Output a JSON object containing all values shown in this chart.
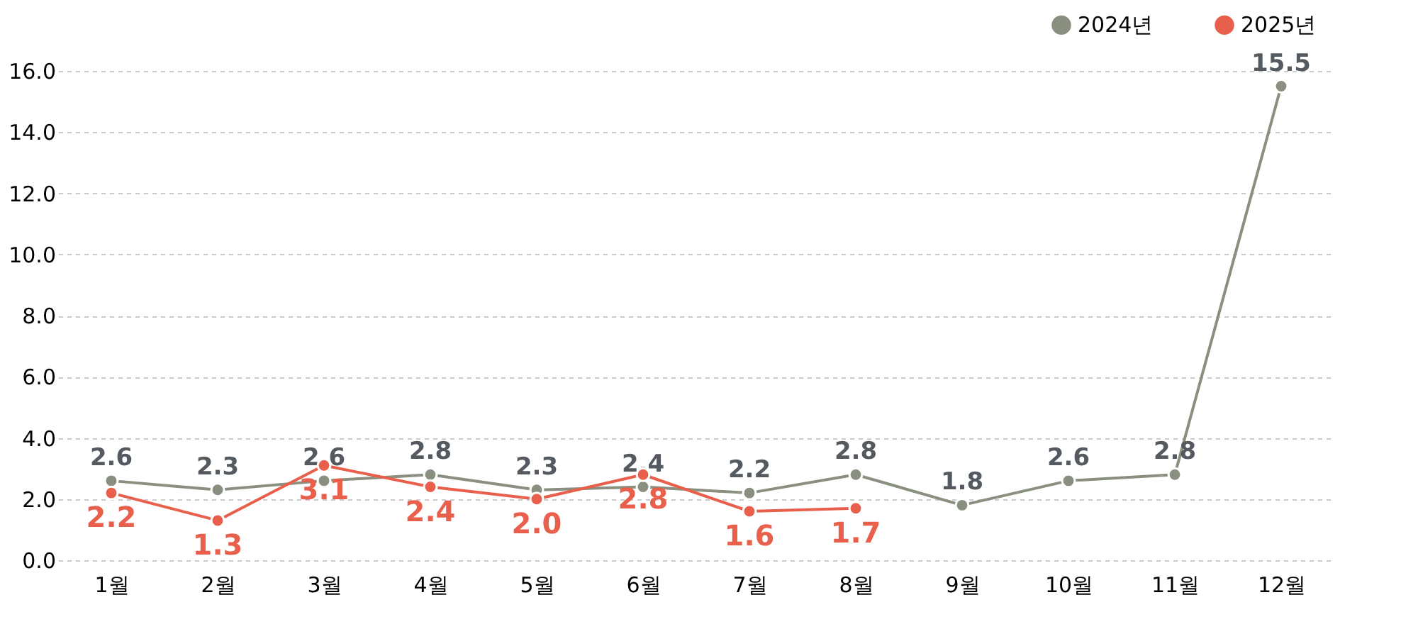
{
  "chart_data": {
    "type": "line",
    "categories": [
      "1월",
      "2월",
      "3월",
      "4월",
      "5월",
      "6월",
      "7월",
      "8월",
      "9월",
      "10월",
      "11월",
      "12월"
    ],
    "series": [
      {
        "name": "2024년",
        "color": "#8a9080",
        "values": [
          2.6,
          2.3,
          2.6,
          2.8,
          2.3,
          2.4,
          2.2,
          2.8,
          1.8,
          2.6,
          2.8,
          15.5
        ],
        "value_labels": [
          "2.6",
          "2.3",
          "2.6",
          "2.8",
          "2.3",
          "2.4",
          "2.2",
          "2.8",
          "1.8",
          "2.6",
          "2.8",
          "15.5"
        ]
      },
      {
        "name": "2025년",
        "color": "#e8604c",
        "values": [
          2.2,
          1.3,
          3.1,
          2.4,
          2.0,
          2.8,
          1.6,
          1.7,
          null,
          null,
          null,
          null
        ],
        "value_labels": [
          "2.2",
          "1.3",
          "3.1",
          "2.4",
          "2.0",
          "2.8",
          "1.6",
          "1.7",
          null,
          null,
          null,
          null
        ]
      }
    ],
    "ylim": [
      0,
      16
    ],
    "yticks": [
      {
        "value": 0,
        "label": "0.0"
      },
      {
        "value": 2,
        "label": "2.0"
      },
      {
        "value": 4,
        "label": "4.0"
      },
      {
        "value": 6,
        "label": "6.0"
      },
      {
        "value": 8,
        "label": "8.0"
      },
      {
        "value": 10,
        "label": "10.0"
      },
      {
        "value": 12,
        "label": "12.0"
      },
      {
        "value": 14,
        "label": "14.0"
      },
      {
        "value": 16,
        "label": "16.0"
      }
    ],
    "grid": "y",
    "legend": "top right",
    "marker": "circle",
    "line_style": "solid"
  }
}
